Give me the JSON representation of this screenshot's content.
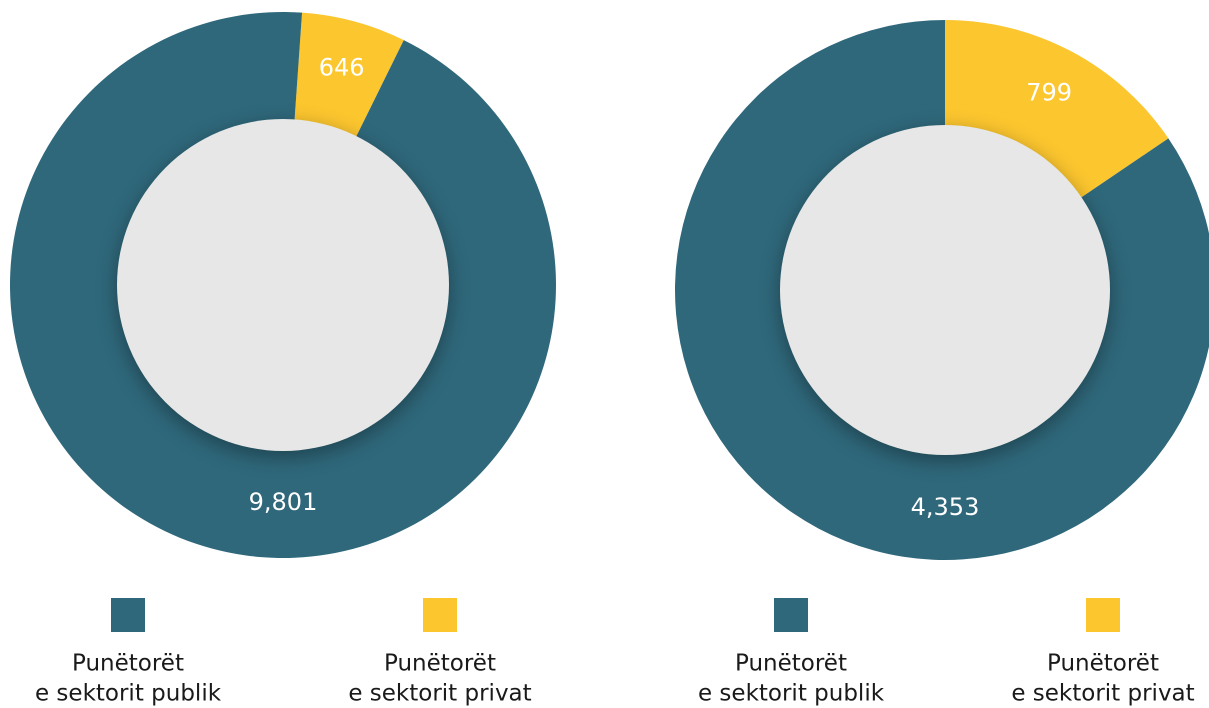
{
  "chart_data": [
    {
      "type": "donut",
      "categories": [
        [
          "Punëtorët",
          "e sektorit publik"
        ],
        [
          "Punëtorët",
          "e sektorit privat"
        ]
      ],
      "values": [
        9801,
        646
      ],
      "value_labels": [
        "9,801",
        "646"
      ],
      "colors": [
        "#2f687b",
        "#fcc62f"
      ]
    },
    {
      "type": "donut",
      "categories": [
        [
          "Punëtorët",
          "e sektorit publik"
        ],
        [
          "Punëtorët",
          "e sektorit privat"
        ]
      ],
      "values": [
        4353,
        799
      ],
      "value_labels": [
        "4,353",
        "799"
      ],
      "colors": [
        "#2f687b",
        "#fcc62f"
      ]
    }
  ]
}
